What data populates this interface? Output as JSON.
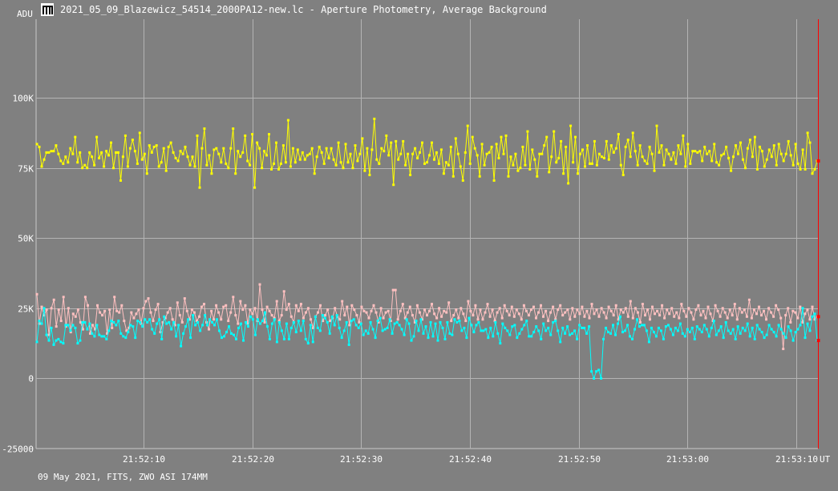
{
  "window": {
    "title": "2021_05_09_Blazewicz_54514_2000PA12-new.lc - Aperture Photometry, Average Background",
    "icon": "app-window-icon"
  },
  "footer": "09 May 2021, FITS, ZWO ASI 174MM",
  "chart_data": {
    "type": "line",
    "ylabel": "ADU",
    "xlabel": "UT",
    "ylim": [
      -25000,
      128000
    ],
    "y_ticks": [
      {
        "value": 100000,
        "label": "100K"
      },
      {
        "value": 75000,
        "label": "75K"
      },
      {
        "value": 50000,
        "label": "50K"
      },
      {
        "value": 25000,
        "label": "25K"
      },
      {
        "value": 0,
        "label": "0"
      },
      {
        "value": -25000,
        "label": "-25000"
      }
    ],
    "x_start": "21:52:00.1",
    "x_end": "21:53:12.0",
    "x_ticks": [
      "21:52:10",
      "21:52:20",
      "21:52:30",
      "21:52:40",
      "21:52:50",
      "21:53:00",
      "21:53:10"
    ],
    "grid": true,
    "cursor_x": "21:53:12.0",
    "series": [
      {
        "color": "#ffff00",
        "values": [
          83500,
          82500,
          75500,
          78000,
          80500,
          80500,
          81000,
          81000,
          83000,
          80000,
          77500,
          76500,
          79000,
          77000,
          82000,
          80000,
          86000,
          77000,
          80500,
          75000,
          76000,
          75000,
          80500,
          79000,
          76000,
          86000,
          78500,
          80500,
          75500,
          81000,
          79500,
          84000,
          75000,
          80500,
          80500,
          70500,
          79000,
          86500,
          75500,
          82000,
          85000,
          81000,
          76500,
          87500,
          78000,
          80000,
          73000,
          83000,
          80500,
          82500,
          83000,
          75500,
          77000,
          82000,
          74000,
          82500,
          84000,
          80500,
          78500,
          77500,
          81000,
          80000,
          82500,
          79000,
          76000,
          79000,
          75500,
          86500,
          68000,
          82000,
          89000,
          76000,
          79500,
          73000,
          81500,
          82000,
          80000,
          77000,
          82000,
          76500,
          75000,
          82000,
          89000,
          73000,
          81000,
          79000,
          80500,
          86500,
          77500,
          76000,
          87000,
          68000,
          84000,
          82000,
          75000,
          81000,
          79500,
          87000,
          74500,
          76500,
          84000,
          74500,
          76500,
          83000,
          77000,
          92000,
          75500,
          82000,
          77000,
          81500,
          78000,
          80500,
          78000,
          79500,
          80000,
          82000,
          73000,
          79000,
          82500,
          80500,
          76500,
          82000,
          78500,
          82000,
          78000,
          76000,
          84000,
          77000,
          75000,
          83500,
          77000,
          80000,
          75000,
          83000,
          77500,
          80000,
          85500,
          74000,
          82000,
          72500,
          81500,
          92500,
          78000,
          76500,
          82000,
          81000,
          86500,
          79500,
          84000,
          69000,
          84500,
          78000,
          80000,
          84500,
          76000,
          80000,
          72500,
          80000,
          82000,
          78500,
          80500,
          84000,
          76500,
          77000,
          79500,
          84000,
          78000,
          80500,
          76500,
          81500,
          73000,
          77000,
          76000,
          82500,
          72000,
          85500,
          80000,
          75500,
          70500,
          80500,
          90000,
          76500,
          86000,
          82000,
          79500,
          72000,
          83500,
          76000,
          80000,
          80500,
          82500,
          70500,
          83500,
          78500,
          86000,
          80000,
          86500,
          72000,
          79000,
          76000,
          80000,
          74000,
          75000,
          82500,
          76000,
          88000,
          74500,
          81500,
          78000,
          72000,
          80000,
          80000,
          83000,
          86000,
          73500,
          79000,
          88000,
          77000,
          78500,
          84500,
          73000,
          82500,
          69500,
          90000,
          77000,
          86000,
          73000,
          80000,
          81500,
          75500,
          83000,
          76500,
          76500,
          84500,
          76000,
          80000,
          79000,
          78500,
          84500,
          78000,
          83000,
          80500,
          82000,
          87000,
          76000,
          72500,
          82500,
          85000,
          79000,
          87500,
          81000,
          76000,
          83000,
          79000,
          77500,
          76500,
          82500,
          80000,
          74000,
          90000,
          80500,
          83000,
          76000,
          81500,
          80000,
          78000,
          80500,
          76500,
          83000,
          80000,
          86500,
          75500,
          83500,
          76500,
          81000,
          81000,
          80500,
          81000,
          77500,
          82500,
          80000,
          81000,
          77500,
          83500,
          77000,
          76000,
          79500,
          80000,
          82500,
          78500,
          74000,
          79000,
          83000,
          80000,
          84000,
          78000,
          75000,
          82000,
          85000,
          79000,
          86000,
          74500,
          82500,
          81000,
          75500,
          78000,
          81500,
          79000,
          83000,
          76000,
          83500,
          80000,
          77500,
          80000,
          84500,
          79500,
          76000,
          83500,
          76500,
          74500,
          81500,
          74500,
          87500,
          84000,
          73000,
          74500,
          77500
        ]
      },
      {
        "color": "#ffc0c0",
        "values": [
          30000,
          19500,
          25500,
          22500,
          24500,
          15500,
          25000,
          28000,
          18500,
          24500,
          20500,
          29000,
          18500,
          25000,
          16500,
          23000,
          22000,
          24500,
          20000,
          17500,
          29000,
          26000,
          16000,
          19000,
          17500,
          26000,
          23500,
          22500,
          24000,
          16000,
          24500,
          18000,
          29000,
          24000,
          23500,
          26000,
          20500,
          17000,
          18000,
          23500,
          21500,
          23000,
          24500,
          19500,
          25000,
          27500,
          28500,
          23500,
          20500,
          24500,
          26500,
          16500,
          20000,
          21500,
          23500,
          25000,
          21000,
          19000,
          27000,
          22500,
          20000,
          28500,
          24000,
          21000,
          24500,
          23500,
          20500,
          22000,
          25500,
          26500,
          20000,
          17500,
          24000,
          21000,
          26000,
          23500,
          21000,
          25500,
          26000,
          20500,
          23500,
          29000,
          22500,
          19500,
          27500,
          24500,
          26000,
          19500,
          24500,
          23000,
          25000,
          20500,
          33500,
          24500,
          20000,
          25500,
          24000,
          22500,
          21500,
          27500,
          20500,
          22500,
          31000,
          24500,
          26500,
          22000,
          20000,
          26000,
          24000,
          26500,
          21500,
          23500,
          25000,
          21000,
          18000,
          22000,
          23500,
          26000,
          20500,
          22500,
          24500,
          20500,
          21500,
          25000,
          22000,
          21000,
          27500,
          22500,
          25500,
          19000,
          26000,
          24500,
          22500,
          20000,
          25500,
          24000,
          23500,
          21500,
          24000,
          26000,
          23500,
          20000,
          25000,
          21500,
          23500,
          24000,
          20500,
          31500,
          31500,
          21000,
          24000,
          26500,
          21500,
          23500,
          25500,
          22500,
          20000,
          26000,
          23500,
          21000,
          24500,
          22500,
          24000,
          26500,
          23000,
          21500,
          25000,
          22000,
          24000,
          23500,
          27000,
          20500,
          22500,
          24500,
          21500,
          25000,
          23000,
          20500,
          27500,
          24000,
          22500,
          26000,
          21000,
          24500,
          21000,
          23500,
          26500,
          22000,
          24500,
          20500,
          23500,
          25000,
          21500,
          26000,
          24000,
          22500,
          25500,
          22000,
          24500,
          23000,
          21000,
          26000,
          24000,
          22500,
          24500,
          25500,
          21500,
          23500,
          26000,
          22000,
          24000,
          20500,
          23500,
          25500,
          21000,
          24500,
          26000,
          22500,
          23500,
          24500,
          21000,
          25000,
          22000,
          24500,
          23000,
          25500,
          22000,
          24000,
          21500,
          26500,
          23000,
          24500,
          22000,
          25000,
          23500,
          21500,
          25500,
          24000,
          22500,
          26000,
          21000,
          24500,
          23500,
          25000,
          22000,
          27500,
          21500,
          25000,
          23500,
          20000,
          26500,
          22500,
          24500,
          21000,
          25500,
          23000,
          24000,
          22500,
          26000,
          21500,
          24500,
          23000,
          25000,
          22000,
          23500,
          21500,
          26500,
          24000,
          22000,
          25000,
          23500,
          21000,
          24500,
          26000,
          22500,
          24000,
          21500,
          25500,
          23000,
          20500,
          26000,
          24000,
          22000,
          25000,
          23500,
          21500,
          24500,
          22500,
          26500,
          21000,
          25000,
          23500,
          24500,
          22000,
          28000,
          21500,
          24500,
          23000,
          25500,
          22500,
          24000,
          21000,
          25000,
          23500,
          22000,
          26000,
          24500,
          21500,
          10500,
          22500,
          25000,
          20000,
          24000,
          23500,
          21500,
          25500,
          20000,
          23000,
          24500,
          21000,
          25500,
          21000,
          22000
        ]
      },
      {
        "color": "#00ffff",
        "values": [
          13000,
          20500,
          19500,
          25000,
          15500,
          13500,
          18000,
          12000,
          13500,
          14000,
          13000,
          12500,
          19000,
          19000,
          17000,
          19000,
          18000,
          12500,
          13500,
          20000,
          20000,
          17500,
          19500,
          16000,
          15000,
          19000,
          15500,
          15000,
          15000,
          14000,
          17000,
          20500,
          20000,
          19000,
          20500,
          16000,
          15000,
          14500,
          16500,
          19000,
          18500,
          14500,
          20500,
          20000,
          18500,
          21000,
          20000,
          21000,
          17500,
          16000,
          19500,
          21000,
          14000,
          22000,
          19500,
          20000,
          17500,
          20000,
          15000,
          19000,
          11500,
          16000,
          18500,
          21000,
          14500,
          22500,
          19000,
          20000,
          17000,
          19000,
          22500,
          19000,
          21000,
          20000,
          19000,
          21000,
          17000,
          14500,
          15000,
          16500,
          18500,
          16000,
          15500,
          14000,
          18000,
          19500,
          13500,
          20000,
          18500,
          22000,
          21000,
          15500,
          21000,
          19500,
          20500,
          23500,
          18500,
          14000,
          19500,
          21000,
          13000,
          20000,
          17000,
          14000,
          19500,
          14000,
          18000,
          20000,
          16500,
          20500,
          17000,
          20500,
          14000,
          12500,
          19000,
          13000,
          22000,
          18000,
          17000,
          22500,
          21500,
          20000,
          16000,
          22000,
          19000,
          22500,
          18000,
          14500,
          17000,
          20000,
          12000,
          20500,
          21000,
          19000,
          18000,
          19500,
          15500,
          17000,
          16000,
          20000,
          17500,
          14500,
          20500,
          21500,
          17000,
          17500,
          18000,
          21000,
          16000,
          19500,
          20000,
          19000,
          17500,
          15500,
          21000,
          19500,
          13500,
          15000,
          20500,
          17000,
          21000,
          16000,
          18500,
          14500,
          20000,
          15000,
          19500,
          13500,
          20000,
          18000,
          14000,
          20000,
          16000,
          15500,
          21000,
          20000,
          20500,
          17000,
          18000,
          14500,
          21500,
          19000,
          16500,
          19000,
          20000,
          17000,
          17000,
          17500,
          14500,
          18000,
          15000,
          20000,
          16000,
          12500,
          19500,
          18000,
          17000,
          15500,
          18500,
          19000,
          14500,
          16000,
          17500,
          19000,
          20500,
          15000,
          15000,
          16500,
          18500,
          17000,
          14000,
          19500,
          17000,
          18000,
          15500,
          20000,
          20500,
          17000,
          13000,
          18000,
          16000,
          18500,
          15500,
          16000,
          17000,
          14000,
          19000,
          18000,
          18000,
          16000,
          18500,
          2500,
          0,
          2500,
          3000,
          0,
          14000,
          18000,
          16500,
          16000,
          19000,
          15500,
          19500,
          22000,
          16500,
          17000,
          19000,
          15000,
          14000,
          17500,
          21000,
          18500,
          19000,
          19000,
          17000,
          13000,
          18000,
          16500,
          15000,
          18000,
          17000,
          14000,
          18500,
          19000,
          17500,
          15500,
          18000,
          17000,
          19500,
          16000,
          15000,
          17500,
          16500,
          18000,
          14000,
          18500,
          17500,
          16500,
          19000,
          17500,
          15000,
          18000,
          20500,
          15500,
          17000,
          18500,
          14500,
          20000,
          17000,
          16000,
          17500,
          14000,
          18500,
          16000,
          18000,
          17000,
          19500,
          15000,
          18000,
          14000,
          19000,
          17500,
          16500,
          14500,
          15500,
          19000,
          17500,
          16500,
          15000,
          19000,
          17500,
          16000,
          14500,
          18500,
          17000,
          13500,
          16500,
          17500,
          19000,
          25000,
          14500,
          19500,
          17000,
          22000,
          23000,
          13500
        ]
      }
    ]
  }
}
